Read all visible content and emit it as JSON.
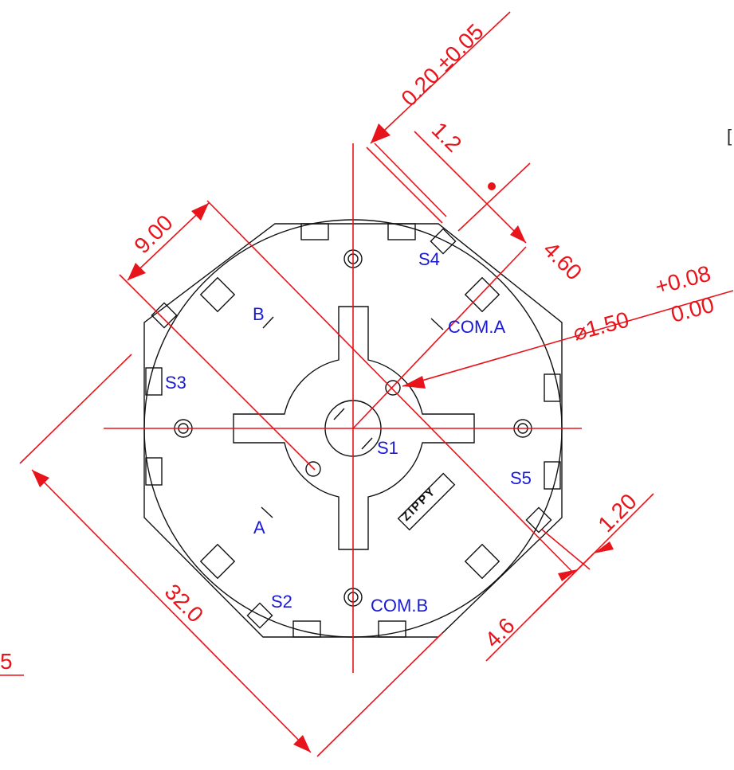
{
  "dimensions": [
    "0.20 ±0.05",
    "1.2",
    "9.00",
    "4.60",
    "+0.08",
    "0.00",
    "⌀1.50",
    "1.20",
    "4.6",
    "32.0",
    "5",
    "["
  ],
  "labels": [
    "S4",
    "B",
    "COM.A",
    "S3",
    "S1",
    "S5",
    "A",
    "S2",
    "COM.B"
  ],
  "logo": "ZIPPY"
}
